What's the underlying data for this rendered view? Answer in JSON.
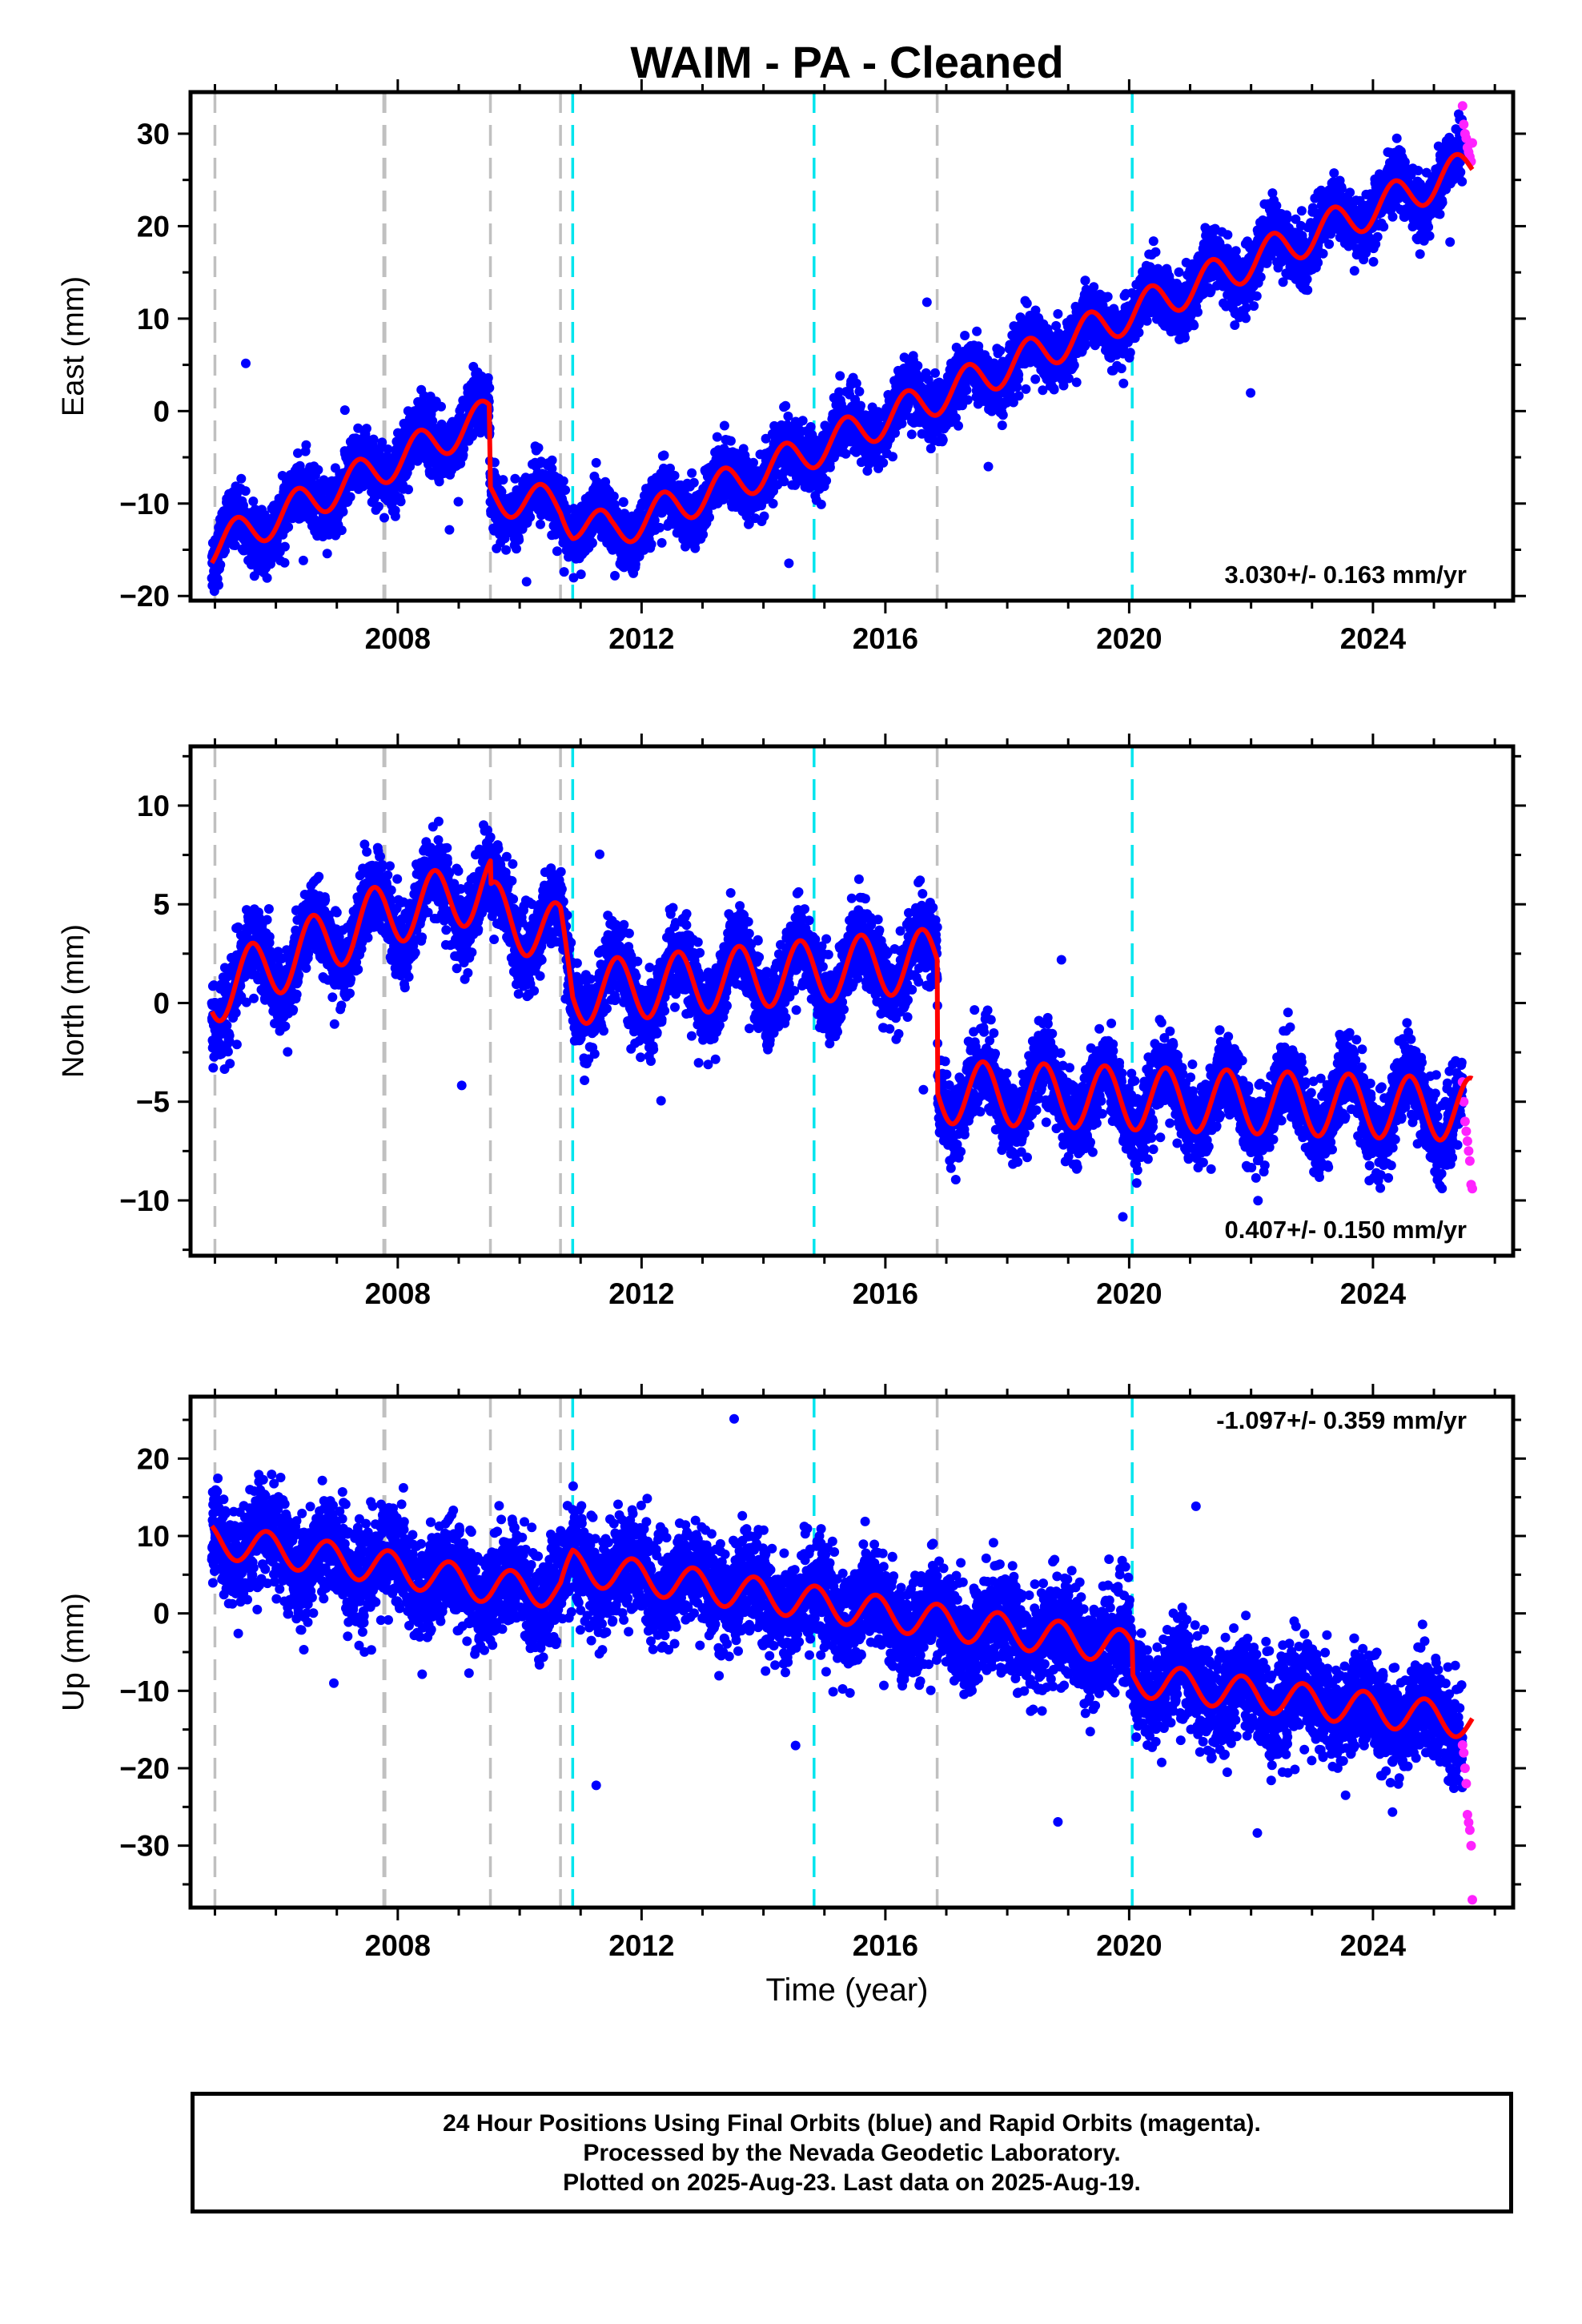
{
  "chart_data": {
    "type": "scatter",
    "title": "WAIM  - PA - Cleaned",
    "xlabel": "Time (year)",
    "xlim": [
      2004.6,
      2026.3
    ],
    "xticks": [
      2008,
      2012,
      2016,
      2020,
      2024
    ],
    "colors": {
      "final": "#0000ff",
      "rapid": "#ff22ff",
      "model": "#ff0000",
      "equipment": "#c0c0c0",
      "earthquake": "#00e5ee"
    },
    "series_legend": {
      "final": "Final Orbits (blue)",
      "rapid": "Rapid Orbits (magenta)"
    },
    "event_lines": {
      "gray": [
        2005.0,
        2007.78,
        2009.52,
        2010.67,
        2016.85
      ],
      "cyan": [
        2010.87,
        2014.83,
        2020.05
      ]
    },
    "data_start": 2004.95,
    "data_end": 2025.63,
    "rapid_start": 2025.47,
    "panels": [
      {
        "name": "East",
        "ylabel": "East (mm)",
        "ylim": [
          -20.5,
          34.5
        ],
        "yticks": [
          -20,
          -10,
          0,
          10,
          20,
          30
        ],
        "rate_text": "3.030+/- 0.163 mm/yr",
        "rate_position": "bottom-right",
        "rate": 3.03,
        "trend_knots": [
          [
            2004.95,
            -14.8
          ],
          [
            2009.5,
            -0.5
          ],
          [
            2009.52,
            -9.2
          ],
          [
            2010.67,
            -10.2
          ],
          [
            2010.87,
            -11.8
          ],
          [
            2011.5,
            -13.0
          ],
          [
            2014.0,
            -6.5
          ],
          [
            2025.63,
            26.5
          ]
        ],
        "annual_amplitude": 2.0,
        "annual_phase": 0.1,
        "noise": 1.6,
        "rapid_values": [
          33,
          31,
          30,
          29.5,
          28.5,
          28,
          27.5,
          27,
          29
        ]
      },
      {
        "name": "North",
        "ylabel": "North (mm)",
        "ylim": [
          -12.8,
          13.0
        ],
        "yticks": [
          -10,
          -5,
          0,
          5,
          10
        ],
        "rate_text": "0.407+/- 0.150 mm/yr",
        "rate_position": "bottom-right",
        "rate": 0.407,
        "trend_knots": [
          [
            2004.95,
            0.5
          ],
          [
            2007.78,
            4.5
          ],
          [
            2009.52,
            5.8
          ],
          [
            2009.53,
            4.6
          ],
          [
            2010.67,
            3.4
          ],
          [
            2010.87,
            0.5
          ],
          [
            2016.85,
            2.2
          ],
          [
            2016.86,
            -4.5
          ],
          [
            2025.63,
            -5.4
          ]
        ],
        "annual_amplitude": 1.6,
        "annual_phase": 0.35,
        "noise": 1.0,
        "rapid_values": [
          -4,
          -5,
          -6,
          -6.5,
          -7,
          -7.5,
          -8,
          -9.2,
          -9.4
        ]
      },
      {
        "name": "Up",
        "ylabel": "Up (mm)",
        "ylim": [
          -38,
          28
        ],
        "yticks": [
          -30,
          -20,
          -10,
          0,
          10,
          20
        ],
        "rate_text": "-1.097+/- 0.359 mm/yr",
        "rate_position": "top-right",
        "rate": -1.097,
        "trend_knots": [
          [
            2004.95,
            9.5
          ],
          [
            2007.78,
            6.0
          ],
          [
            2009.52,
            3.5
          ],
          [
            2010.67,
            3.0
          ],
          [
            2010.87,
            6.0
          ],
          [
            2016.85,
            -1.0
          ],
          [
            2020.05,
            -4.5
          ],
          [
            2020.06,
            -8.5
          ],
          [
            2025.63,
            -14.0
          ]
        ],
        "annual_amplitude": 2.2,
        "annual_phase": 0.6,
        "noise": 3.2,
        "rapid_values": [
          -17,
          -18,
          -20,
          -22,
          -26,
          -27,
          -28,
          -30,
          -37
        ]
      }
    ]
  },
  "footer": {
    "line1": "24 Hour Positions Using Final Orbits (blue) and Rapid Orbits (magenta).",
    "line2": "Processed by the Nevada Geodetic Laboratory.",
    "line3": "Plotted on 2025-Aug-23. Last data on 2025-Aug-19."
  }
}
